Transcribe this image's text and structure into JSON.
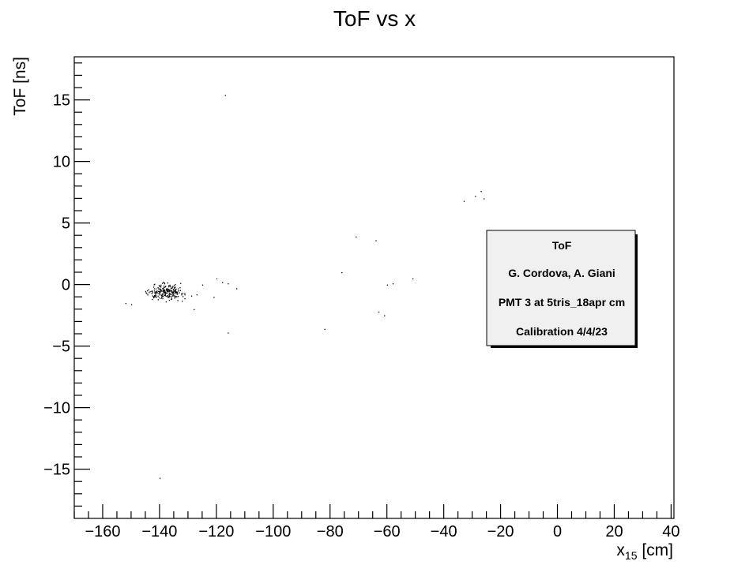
{
  "chart_data": {
    "type": "scatter",
    "title": "ToF vs x",
    "xlabel": {
      "main": "x",
      "sub": "15",
      "unit": " [cm]"
    },
    "ylabel": "ToF [ns]",
    "xlim": [
      -170,
      41
    ],
    "ylim": [
      -19,
      18.5
    ],
    "xticks": [
      -160,
      -140,
      -120,
      -100,
      -80,
      -60,
      -40,
      -20,
      0,
      20,
      40
    ],
    "xtick_labels": [
      "−160",
      "−140",
      "−120",
      "−100",
      "−80",
      "−60",
      "−40",
      "−20",
      "0",
      "20",
      "40"
    ],
    "yticks": [
      -15,
      -10,
      -5,
      0,
      5,
      10,
      15
    ],
    "ytick_labels": [
      "−15",
      "−10",
      "−5",
      "0",
      "5",
      "10",
      "15"
    ],
    "grid": false,
    "legend": {
      "placement": "center-right",
      "lines": [
        "ToF",
        "G. Cordova, A. Giani",
        "PMT 3 at 5tris_18apr cm",
        "Calibration 4/4/23"
      ]
    },
    "cluster": {
      "x_center": -138,
      "y_center": -0.6,
      "x_spread": 6,
      "y_spread": 0.55,
      "count": 230
    },
    "points": [
      [
        -117.0,
        15.4
      ],
      [
        -140.0,
        -15.7
      ],
      [
        -116.0,
        -3.9
      ],
      [
        -82.0,
        -3.6
      ],
      [
        -76.0,
        1.0
      ],
      [
        -71.0,
        3.9
      ],
      [
        -64.0,
        3.6
      ],
      [
        -60.0,
        0.0
      ],
      [
        -58.0,
        0.1
      ],
      [
        -51.0,
        0.5
      ],
      [
        -63.0,
        -2.2
      ],
      [
        -61.0,
        -2.5
      ],
      [
        -33.0,
        6.8
      ],
      [
        -29.0,
        7.2
      ],
      [
        -27.0,
        7.6
      ],
      [
        -26.0,
        7.0
      ],
      [
        -120.0,
        0.5
      ],
      [
        -118.0,
        0.2
      ],
      [
        -113.0,
        -0.3
      ],
      [
        -121.0,
        -1.0
      ],
      [
        -116.0,
        0.1
      ],
      [
        -128.0,
        -2.0
      ],
      [
        -150.0,
        -1.6
      ],
      [
        -152.0,
        -1.5
      ],
      [
        -125.0,
        0.0
      ],
      [
        -127.0,
        -0.8
      ]
    ]
  }
}
